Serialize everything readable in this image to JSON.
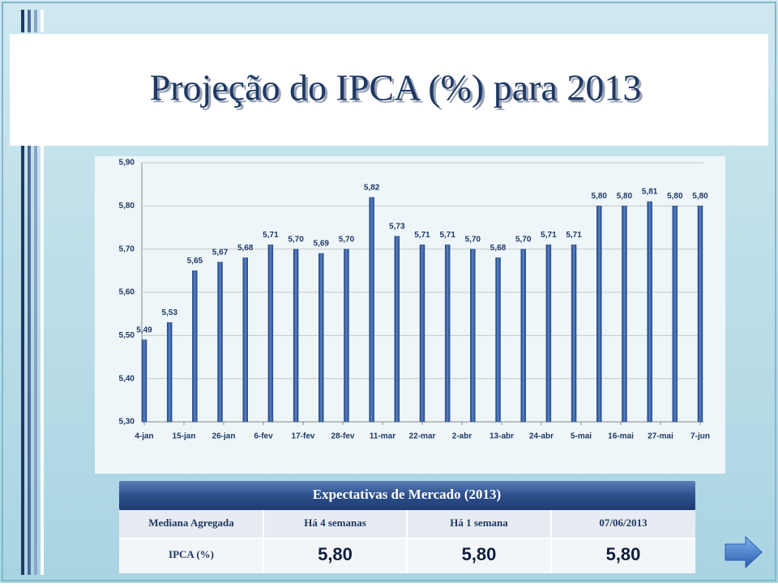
{
  "title": "Projeção do IPCA (%) para 2013",
  "chart_data": {
    "type": "bar",
    "x": [
      "2013-01-04",
      "2013-01-11",
      "2013-01-18",
      "2013-01-25",
      "2013-02-01",
      "2013-02-08",
      "2013-02-15",
      "2013-02-22",
      "2013-03-01",
      "2013-03-08",
      "2013-03-15",
      "2013-03-22",
      "2013-03-29",
      "2013-04-05",
      "2013-04-12",
      "2013-04-19",
      "2013-04-26",
      "2013-05-03",
      "2013-05-10",
      "2013-05-17",
      "2013-05-24",
      "2013-05-31",
      "2013-06-07"
    ],
    "values": [
      5.49,
      5.53,
      5.65,
      5.67,
      5.68,
      5.71,
      5.7,
      5.69,
      5.7,
      5.82,
      5.73,
      5.71,
      5.71,
      5.7,
      5.68,
      5.7,
      5.71,
      5.71,
      5.8,
      5.8,
      5.81,
      5.8,
      5.8
    ],
    "value_labels": [
      "5,49",
      "5,53",
      "5,65",
      "5,67",
      "5,68",
      "5,71",
      "5,70",
      "5,69",
      "5,70",
      "5,82",
      "5,73",
      "5,71",
      "5,71",
      "5,70",
      "5,68",
      "5,70",
      "5,71",
      "5,71",
      "5,80",
      "5,80",
      "5,81",
      "5,80",
      "5,80"
    ],
    "color": "#2e5597",
    "xlim": [
      "2013-01-04",
      "2013-06-07"
    ],
    "xticks": [
      {
        "value": "2013-01-04",
        "label": "4-jan"
      },
      {
        "value": "2013-01-15",
        "label": "15-jan"
      },
      {
        "value": "2013-01-26",
        "label": "26-jan"
      },
      {
        "value": "2013-02-06",
        "label": "6-fev"
      },
      {
        "value": "2013-02-17",
        "label": "17-fev"
      },
      {
        "value": "2013-02-28",
        "label": "28-fev"
      },
      {
        "value": "2013-03-11",
        "label": "11-mar"
      },
      {
        "value": "2013-03-22",
        "label": "22-mar"
      },
      {
        "value": "2013-04-02",
        "label": "2-abr"
      },
      {
        "value": "2013-04-13",
        "label": "13-abr"
      },
      {
        "value": "2013-04-24",
        "label": "24-abr"
      },
      {
        "value": "2013-05-05",
        "label": "5-mai"
      },
      {
        "value": "2013-05-16",
        "label": "16-mai"
      },
      {
        "value": "2013-05-27",
        "label": "27-mai"
      },
      {
        "value": "2013-06-07",
        "label": "7-jun"
      }
    ],
    "ylim": [
      5.3,
      5.9
    ],
    "yticks": [
      {
        "value": 5.3,
        "label": "5,30"
      },
      {
        "value": 5.4,
        "label": "5,40"
      },
      {
        "value": 5.5,
        "label": "5,50"
      },
      {
        "value": 5.6,
        "label": "5,60"
      },
      {
        "value": 5.7,
        "label": "5,70"
      },
      {
        "value": 5.8,
        "label": "5,80"
      },
      {
        "value": 5.9,
        "label": "5,90"
      }
    ],
    "grid": true
  },
  "table": {
    "title": "Expectativas de Mercado (2013)",
    "header": [
      "Mediana Agregada",
      "Há 4 semanas",
      "Há 1 semana",
      "07/06/2013"
    ],
    "rows": [
      [
        "IPCA (%)",
        "5,80",
        "5,80",
        "5,80"
      ]
    ]
  }
}
